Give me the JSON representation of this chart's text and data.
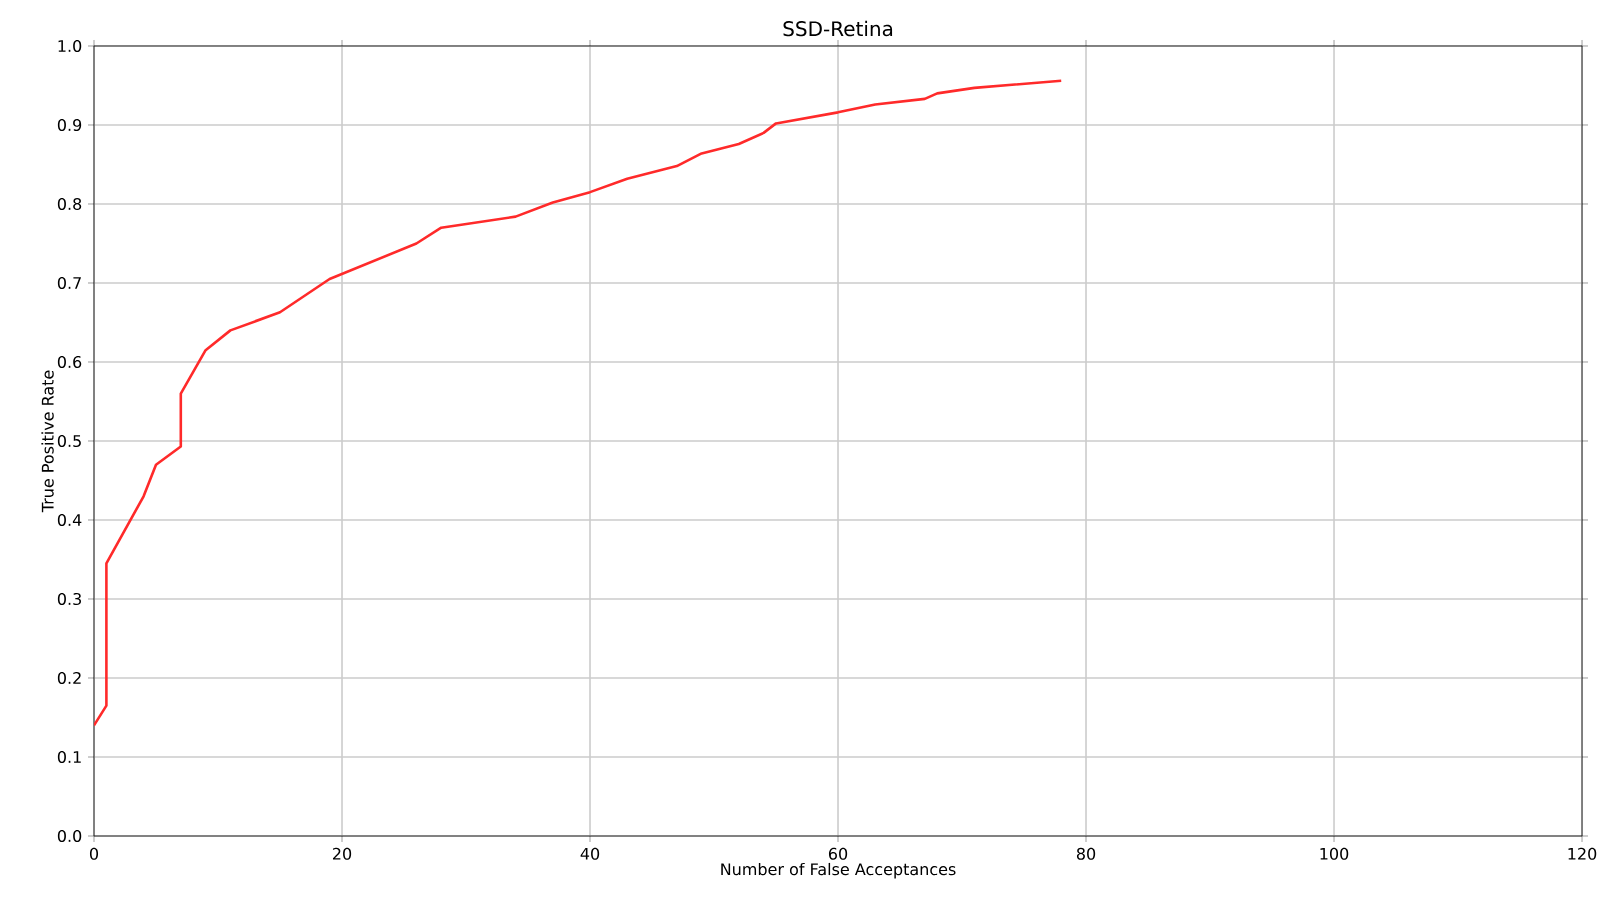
{
  "chart_data": {
    "type": "line",
    "title": "SSD-Retina",
    "xlabel": "Number of False Acceptances",
    "ylabel": "True Positive Rate",
    "x": [
      0,
      1,
      1,
      4,
      5,
      7,
      7,
      9,
      11,
      15,
      19,
      26,
      28,
      34,
      37,
      40,
      43,
      47,
      49,
      52,
      54,
      55,
      60,
      63,
      67,
      68,
      71,
      78
    ],
    "series": [
      {
        "color": "#ff2a2a",
        "values": [
          0.14,
          0.165,
          0.345,
          0.43,
          0.47,
          0.493,
          0.56,
          0.615,
          0.64,
          0.663,
          0.705,
          0.75,
          0.77,
          0.784,
          0.802,
          0.815,
          0.832,
          0.848,
          0.864,
          0.876,
          0.89,
          0.902,
          0.916,
          0.926,
          0.933,
          0.94,
          0.947,
          0.956
        ]
      }
    ],
    "xlim": [
      0,
      120
    ],
    "ylim": [
      0,
      1.0
    ],
    "xticks": [
      0,
      20,
      40,
      60,
      80,
      100,
      120
    ],
    "yticks": [
      {
        "value": 0,
        "label": "0.0"
      },
      {
        "value": 0.1,
        "label": "0.1"
      },
      {
        "value": 0.2,
        "label": "0.2"
      },
      {
        "value": 0.3,
        "label": "0.3"
      },
      {
        "value": 0.4,
        "label": "0.4"
      },
      {
        "value": 0.5,
        "label": "0.5"
      },
      {
        "value": 0.6,
        "label": "0.6"
      },
      {
        "value": 0.7,
        "label": "0.7"
      },
      {
        "value": 0.8,
        "label": "0.8"
      },
      {
        "value": 0.9,
        "label": "0.9"
      },
      {
        "value": 1.0,
        "label": "1.0"
      }
    ],
    "grid": true,
    "marker": "none",
    "line_style": "solid"
  }
}
